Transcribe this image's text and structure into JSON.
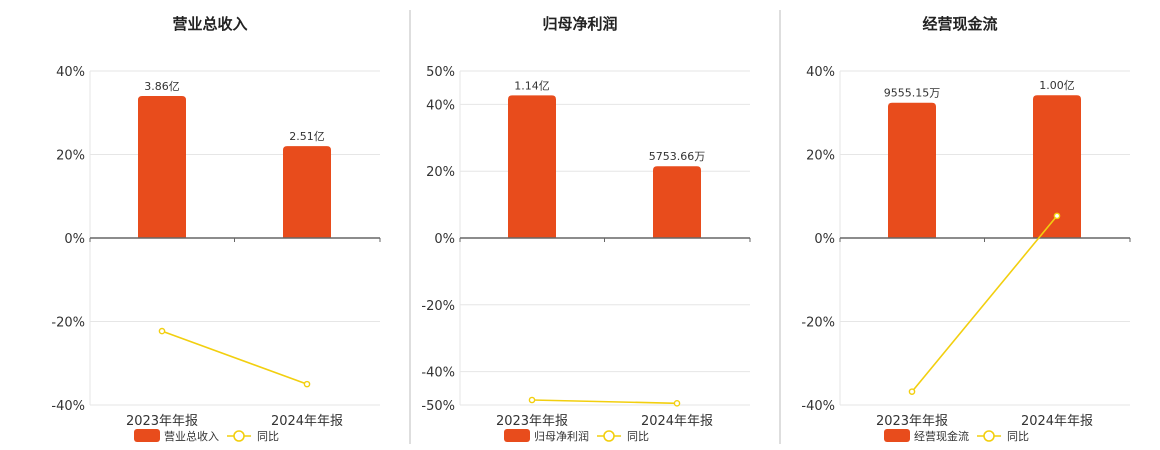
{
  "colors": {
    "bar": "#e84c1c",
    "line": "#f2cf0f",
    "grid": "#e6e6e6",
    "axis": "#666666",
    "divider": "#bdbdbd"
  },
  "chart_data": [
    {
      "type": "bar",
      "title": "营业总收入",
      "categories": [
        "2023年年报",
        "2024年年报"
      ],
      "ylim": [
        -40,
        40
      ],
      "yticks": [
        40,
        20,
        0,
        -20,
        -40
      ],
      "ytick_labels": [
        "40%",
        "20%",
        "0%",
        "-20%",
        "-40%"
      ],
      "series": [
        {
          "name": "营业总收入",
          "kind": "bar",
          "values": [
            34,
            22
          ],
          "labels": [
            "3.86亿",
            "2.51亿"
          ]
        },
        {
          "name": "同比",
          "kind": "line",
          "values": [
            -22.3,
            -35.0
          ]
        }
      ],
      "legend": "bottom-center",
      "grid": true
    },
    {
      "type": "bar",
      "title": "归母净利润",
      "categories": [
        "2023年年报",
        "2024年年报"
      ],
      "ylim": [
        -50,
        50
      ],
      "yticks": [
        50,
        40,
        20,
        0,
        -20,
        -40,
        -50
      ],
      "ytick_labels": [
        "50%",
        "40%",
        "20%",
        "0%",
        "-20%",
        "-40%",
        "-50%"
      ],
      "series": [
        {
          "name": "归母净利润",
          "kind": "bar",
          "values": [
            42.7,
            21.5
          ],
          "labels": [
            "1.14亿",
            "5753.66万"
          ]
        },
        {
          "name": "同比",
          "kind": "line",
          "values": [
            -48.5,
            -49.5
          ]
        }
      ],
      "legend": "bottom-center",
      "grid": true
    },
    {
      "type": "bar",
      "title": "经营现金流",
      "categories": [
        "2023年年报",
        "2024年年报"
      ],
      "ylim": [
        -40,
        40
      ],
      "yticks": [
        40,
        20,
        0,
        -20,
        -40
      ],
      "ytick_labels": [
        "40%",
        "20%",
        "0%",
        "-20%",
        "-40%"
      ],
      "series": [
        {
          "name": "经营现金流",
          "kind": "bar",
          "values": [
            32.4,
            34.2
          ],
          "labels": [
            "9555.15万",
            "1.00亿"
          ]
        },
        {
          "name": "同比",
          "kind": "line",
          "values": [
            -36.8,
            5.3
          ]
        }
      ],
      "legend": "bottom-center",
      "grid": true
    }
  ]
}
